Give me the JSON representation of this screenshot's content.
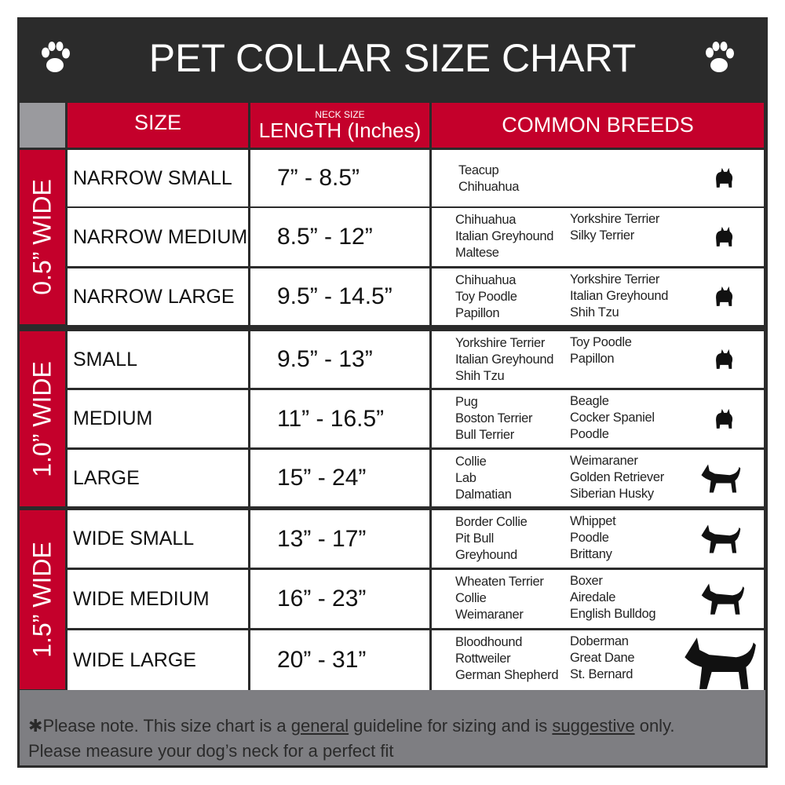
{
  "title": "PET COLLAR SIZE CHART",
  "icons": {
    "left": "paw-print-icon",
    "right": "paw-print-icon"
  },
  "colors": {
    "header_red": "#c4002b",
    "title_bg": "#2b2b2b",
    "footer_gray": "#7e7e82"
  },
  "header": {
    "size": "SIZE",
    "neck_size": "NECK SIZE",
    "length": "LENGTH (Inches)",
    "breeds": "COMMON BREEDS"
  },
  "groups": [
    "0.5” WIDE",
    "1.0” WIDE",
    "1.5” WIDE"
  ],
  "rows": [
    {
      "size": "NARROW SMALL",
      "length": "7” - 8.5”",
      "breeds_left": [
        "Teacup",
        "Chihuahua"
      ],
      "breeds_right": [],
      "icon": "yorkie-silhouette-icon"
    },
    {
      "size": "NARROW MEDIUM",
      "length": "8.5” - 12”",
      "breeds_left": [
        "Chihuahua",
        "Italian Greyhound",
        "Maltese"
      ],
      "breeds_right": [
        "Yorkshire Terrier",
        "Silky Terrier"
      ],
      "icon": "chihuahua-silhouette-icon"
    },
    {
      "size": "NARROW LARGE",
      "length": "9.5” - 14.5”",
      "breeds_left": [
        "Chihuahua",
        "Toy Poodle",
        "Papillon"
      ],
      "breeds_right": [
        "Yorkshire Terrier",
        "Italian Greyhound",
        "Shih Tzu"
      ],
      "icon": "pomeranian-silhouette-icon"
    },
    {
      "size": "SMALL",
      "length": "9.5” - 13”",
      "breeds_left": [
        "Yorkshire Terrier",
        "Italian Greyhound",
        "Shih Tzu"
      ],
      "breeds_right": [
        "Toy Poodle",
        "Papillon"
      ],
      "icon": "pomeranian-silhouette-icon"
    },
    {
      "size": "MEDIUM",
      "length": "11” - 16.5”",
      "breeds_left": [
        "Pug",
        "Boston Terrier",
        "Bull Terrier"
      ],
      "breeds_right": [
        "Beagle",
        "Cocker Spaniel",
        "Poodle"
      ],
      "icon": "dachshund-silhouette-icon"
    },
    {
      "size": "LARGE",
      "length": "15” - 24”",
      "breeds_left": [
        "Collie",
        "Lab",
        "Dalmatian"
      ],
      "breeds_right": [
        "Weimaraner",
        "Golden Retriever",
        "Siberian Husky"
      ],
      "icon": "shepherd-silhouette-icon"
    },
    {
      "size": "WIDE SMALL",
      "length": "13” - 17”",
      "breeds_left": [
        "Border Collie",
        "Pit Bull",
        "Greyhound"
      ],
      "breeds_right": [
        "Whippet",
        "Poodle",
        "Brittany"
      ],
      "icon": "bulldog-silhouette-icon"
    },
    {
      "size": "WIDE MEDIUM",
      "length": "16” - 23”",
      "breeds_left": [
        "Wheaten Terrier",
        "Collie",
        "Weimaraner"
      ],
      "breeds_right": [
        "Boxer",
        "Airedale",
        "English Bulldog"
      ],
      "icon": "pitbull-silhouette-icon"
    },
    {
      "size": "WIDE LARGE",
      "length": "20” - 31”",
      "breeds_left": [
        "Bloodhound",
        "Rottweiler",
        "German Shepherd"
      ],
      "breeds_right": [
        "Doberman",
        "Great Dane",
        "St. Bernard"
      ],
      "icon": "doberman-silhouette-icon"
    }
  ],
  "footer": {
    "star": "✱",
    "part1": "Please note. This size chart is a ",
    "general": "general",
    "part2": " guideline for sizing and is ",
    "suggestive": "suggestive",
    "part3": " only.",
    "line2": "Please measure your dog’s neck for a perfect fit"
  }
}
